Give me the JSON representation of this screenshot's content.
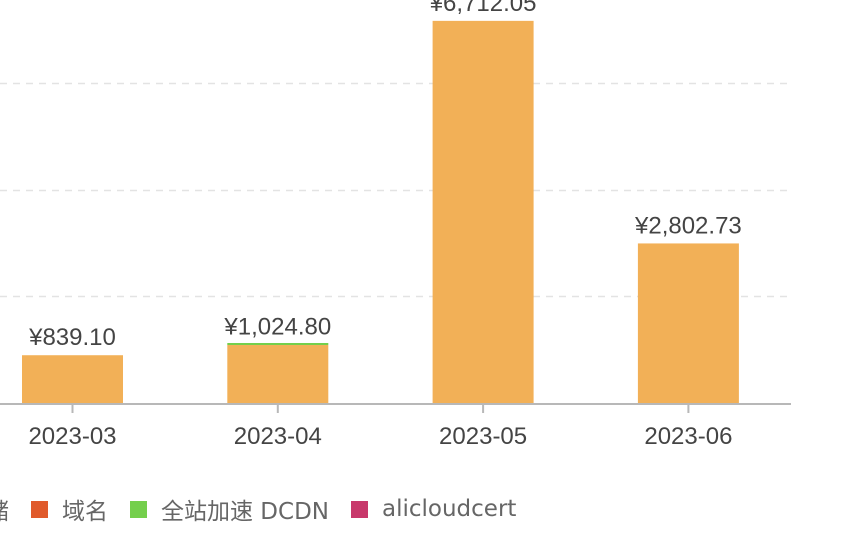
{
  "chart_data": {
    "type": "bar",
    "stacked": true,
    "categories": [
      "2023-03",
      "2023-04",
      "2023-05",
      "2023-06"
    ],
    "totals": [
      "¥839.10",
      "¥1,024.80",
      "¥6,712.05",
      "¥2,802.73"
    ],
    "series": [
      {
        "name": "储",
        "color": "#f2b057",
        "values": [
          839.1,
          1018.8,
          6712.05,
          2802.73
        ]
      },
      {
        "name": "域名",
        "color": "#e05a2b",
        "values": [
          0,
          0,
          0,
          0
        ]
      },
      {
        "name": "全站加速 DCDN",
        "color": "#74cf4c",
        "values": [
          0,
          6.0,
          0,
          0
        ]
      },
      {
        "name": "alicloudcert",
        "color": "#c8386b",
        "values": [
          0,
          0,
          0,
          0
        ]
      }
    ],
    "ylim": [
      0,
      7500
    ],
    "grid": true,
    "legend_position": "bottom"
  }
}
